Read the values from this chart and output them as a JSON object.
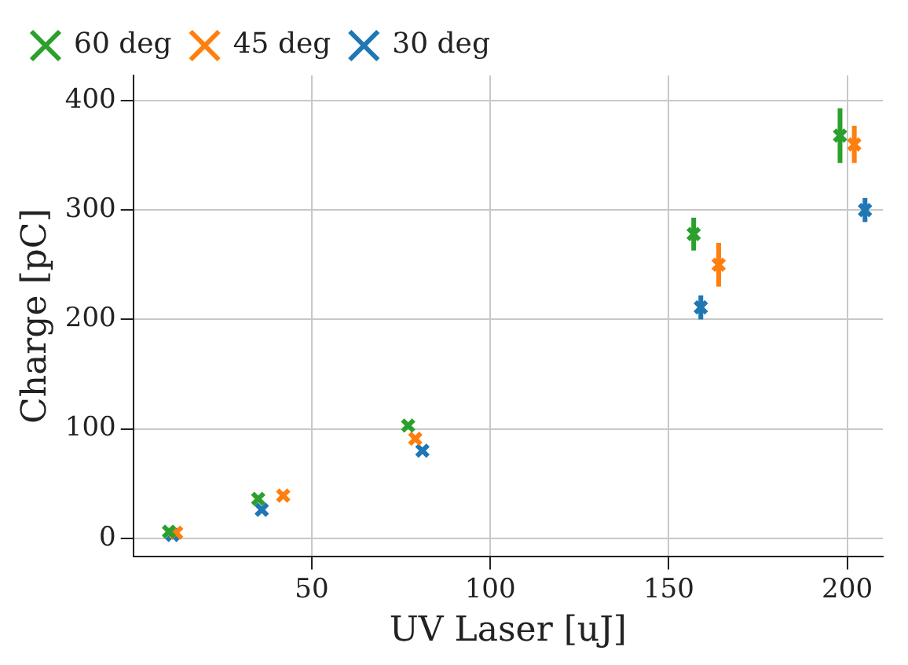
{
  "chart_data": {
    "type": "scatter",
    "xlabel": "UV Laser [uJ]",
    "ylabel": "Charge [pC]",
    "xlim": [
      0,
      210
    ],
    "ylim": [
      -17,
      423
    ],
    "xticks": [
      50,
      100,
      150,
      200
    ],
    "yticks": [
      0,
      100,
      200,
      300,
      400
    ],
    "grid": true,
    "legend": "top left",
    "marker": "cross",
    "series": [
      {
        "name": "30 deg",
        "color": "#1f77b4",
        "x": [
          11,
          36,
          81,
          159,
          205
        ],
        "values": [
          3,
          26,
          80,
          211,
          300
        ],
        "errors": [
          null,
          null,
          null,
          11,
          11
        ]
      },
      {
        "name": "45 deg",
        "color": "#ff7f0e",
        "x": [
          12,
          42,
          79,
          164,
          202
        ],
        "values": [
          5,
          39,
          91,
          250,
          360
        ],
        "errors": [
          null,
          null,
          null,
          20,
          17
        ]
      },
      {
        "name": "60 deg",
        "color": "#2ca02c",
        "x": [
          10,
          35,
          77,
          157,
          198
        ],
        "values": [
          6,
          36,
          103,
          278,
          368
        ],
        "errors": [
          null,
          null,
          null,
          15,
          25
        ]
      }
    ]
  }
}
